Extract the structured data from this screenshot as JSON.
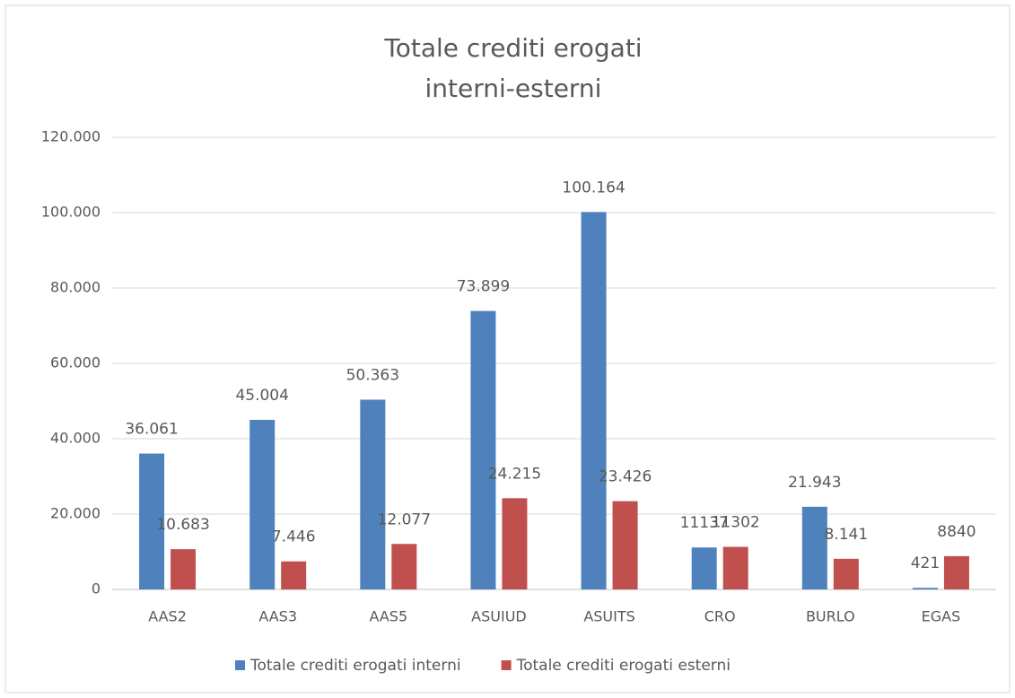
{
  "chart_data": {
    "type": "bar",
    "title": [
      "Totale crediti erogati",
      "interni-esterni"
    ],
    "categories": [
      "AAS2",
      "AAS3",
      "AAS5",
      "ASUIUD",
      "ASUITS",
      "CRO",
      "BURLO",
      "EGAS"
    ],
    "series": [
      {
        "name": "Totale crediti erogati interni",
        "color": "#4f81bd",
        "values": [
          36061,
          45004,
          50363,
          73899,
          100164,
          11137,
          21943,
          421
        ],
        "value_labels": [
          "36.061",
          "45.004",
          "50.363",
          "73.899",
          "100.164",
          "11137",
          "21.943",
          "421"
        ]
      },
      {
        "name": "Totale crediti erogati esterni",
        "color": "#c0504d",
        "values": [
          10683,
          7446,
          12077,
          24215,
          23426,
          11302,
          8141,
          8840
        ],
        "value_labels": [
          "10.683",
          "7.446",
          "12.077",
          "24.215",
          "23.426",
          "11302",
          "8.141",
          "8840"
        ]
      }
    ],
    "ylim": [
      0,
      120000
    ],
    "yticks": [
      0,
      {
        "value": 20000,
        "label": "20.000"
      },
      {
        "value": 40000,
        "label": "40.000"
      },
      {
        "value": 60000,
        "label": "60.000"
      },
      {
        "value": 80000,
        "label": "80.000"
      },
      {
        "value": 100000,
        "label": "100.000"
      },
      {
        "value": 120000,
        "label": "120.000"
      }
    ],
    "grid": true,
    "legend": "bottom"
  }
}
